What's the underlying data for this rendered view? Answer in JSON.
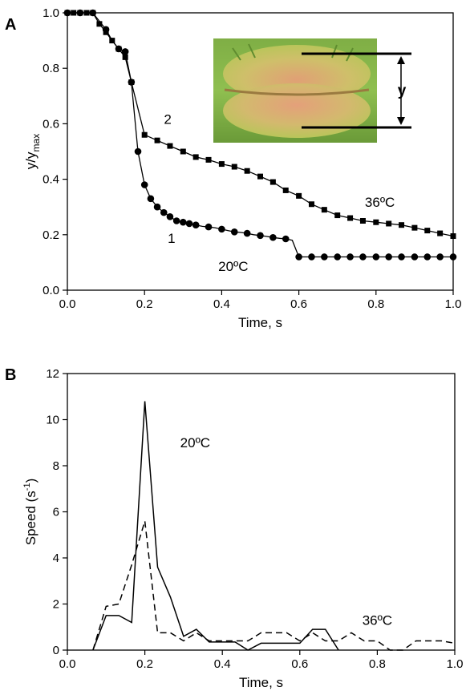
{
  "chart_data": [
    {
      "panel": "A",
      "type": "line",
      "xlabel": "Time, s",
      "ylabel_main": "y/y",
      "ylabel_sub": "max",
      "xlim": [
        0,
        1.0
      ],
      "ylim": [
        0,
        1.0
      ],
      "xticks": [
        "0.0",
        "0.2",
        "0.4",
        "0.6",
        "0.8",
        "1.0"
      ],
      "yticks": [
        "0.0",
        "0.2",
        "0.4",
        "0.6",
        "0.8",
        "1.0"
      ],
      "series": [
        {
          "name": "20ºC",
          "curve_label": "1",
          "marker": "circle",
          "x": [
            0,
            0.016,
            0.033,
            0.05,
            0.066,
            0.083,
            0.1,
            0.116,
            0.133,
            0.15,
            0.166,
            0.183,
            0.2,
            0.216,
            0.233,
            0.25,
            0.266,
            0.283,
            0.3,
            0.316,
            0.333,
            0.35,
            0.366,
            0.383,
            0.4,
            0.416,
            0.433,
            0.45,
            0.466,
            0.483,
            0.5,
            0.516,
            0.533,
            0.55,
            0.566,
            0.583,
            0.6,
            0.616,
            0.633,
            0.65,
            0.666,
            0.683,
            0.7,
            0.716,
            0.733,
            0.75,
            0.766,
            0.783,
            0.8,
            0.816,
            0.833,
            0.85,
            0.866,
            0.883,
            0.9,
            0.916,
            0.933,
            0.95,
            0.966,
            0.983,
            1.0
          ],
          "y": [
            1,
            1,
            1,
            1,
            1,
            0.97,
            0.94,
            0.9,
            0.87,
            0.86,
            0.75,
            0.5,
            0.38,
            0.33,
            0.3,
            0.28,
            0.265,
            0.25,
            0.245,
            0.24,
            0.235,
            0.23,
            0.228,
            0.225,
            0.22,
            0.215,
            0.21,
            0.208,
            0.205,
            0.2,
            0.197,
            0.194,
            0.19,
            0.187,
            0.185,
            0.18,
            0.12,
            0.12,
            0.12,
            0.12,
            0.12,
            0.12,
            0.12,
            0.12,
            0.12,
            0.12,
            0.12,
            0.12,
            0.12,
            0.12,
            0.12,
            0.12,
            0.12,
            0.12,
            0.12,
            0.12,
            0.12,
            0.12,
            0.12,
            0.12,
            0.12
          ],
          "marker_every": 2
        },
        {
          "name": "36ºC",
          "curve_label": "2",
          "marker": "square",
          "x": [
            0,
            0.016,
            0.033,
            0.05,
            0.066,
            0.083,
            0.1,
            0.116,
            0.133,
            0.15,
            0.166,
            0.2,
            0.233,
            0.266,
            0.3,
            0.333,
            0.366,
            0.4,
            0.433,
            0.466,
            0.5,
            0.533,
            0.566,
            0.6,
            0.633,
            0.666,
            0.7,
            0.733,
            0.766,
            0.8,
            0.833,
            0.866,
            0.9,
            0.933,
            0.966,
            1.0
          ],
          "y": [
            1,
            1,
            1,
            1,
            1,
            0.96,
            0.93,
            0.9,
            0.87,
            0.84,
            0.75,
            0.56,
            0.54,
            0.52,
            0.5,
            0.48,
            0.47,
            0.455,
            0.445,
            0.43,
            0.41,
            0.39,
            0.36,
            0.34,
            0.31,
            0.29,
            0.27,
            0.26,
            0.25,
            0.245,
            0.24,
            0.235,
            0.225,
            0.215,
            0.205,
            0.195
          ]
        }
      ],
      "annotations": [
        "2",
        "1",
        "36ºC",
        "20ºC"
      ],
      "inset": {
        "label": "y"
      }
    },
    {
      "panel": "B",
      "type": "line",
      "xlabel": "Time, s",
      "ylabel_main": "Speed (s",
      "ylabel_sup": "-1",
      "ylabel_end": ")",
      "xlim": [
        0,
        1.0
      ],
      "ylim": [
        0,
        12
      ],
      "xticks": [
        "0.0",
        "0.2",
        "0.4",
        "0.6",
        "0.8",
        "1.0"
      ],
      "yticks": [
        "0",
        "2",
        "4",
        "6",
        "8",
        "10",
        "12"
      ],
      "series": [
        {
          "name": "20ºC",
          "style": "solid",
          "x": [
            0.066,
            0.1,
            0.133,
            0.166,
            0.2,
            0.233,
            0.266,
            0.3,
            0.333,
            0.366,
            0.4,
            0.433,
            0.466,
            0.5,
            0.533,
            0.566,
            0.6,
            0.633,
            0.666,
            0.7
          ],
          "y": [
            0,
            1.5,
            1.5,
            1.2,
            10.8,
            3.6,
            2.3,
            0.6,
            0.9,
            0.35,
            0.35,
            0.35,
            0,
            0.3,
            0.3,
            0.3,
            0.3,
            0.9,
            0.9,
            0
          ]
        },
        {
          "name": "36ºC",
          "style": "dashed",
          "x": [
            0.066,
            0.1,
            0.133,
            0.166,
            0.2,
            0.233,
            0.266,
            0.3,
            0.333,
            0.366,
            0.4,
            0.433,
            0.466,
            0.5,
            0.533,
            0.566,
            0.6,
            0.633,
            0.666,
            0.7,
            0.733,
            0.766,
            0.8,
            0.833,
            0.866,
            0.9,
            0.933,
            0.966,
            1.0
          ],
          "y": [
            0,
            1.9,
            2.0,
            3.7,
            5.6,
            0.75,
            0.75,
            0.4,
            0.75,
            0.4,
            0.4,
            0.4,
            0.4,
            0.75,
            0.75,
            0.75,
            0.4,
            0.75,
            0.4,
            0.4,
            0.75,
            0.4,
            0.4,
            0,
            0,
            0.4,
            0.4,
            0.4,
            0.3
          ]
        }
      ],
      "annotations": [
        "20ºC",
        "36ºC"
      ]
    }
  ]
}
